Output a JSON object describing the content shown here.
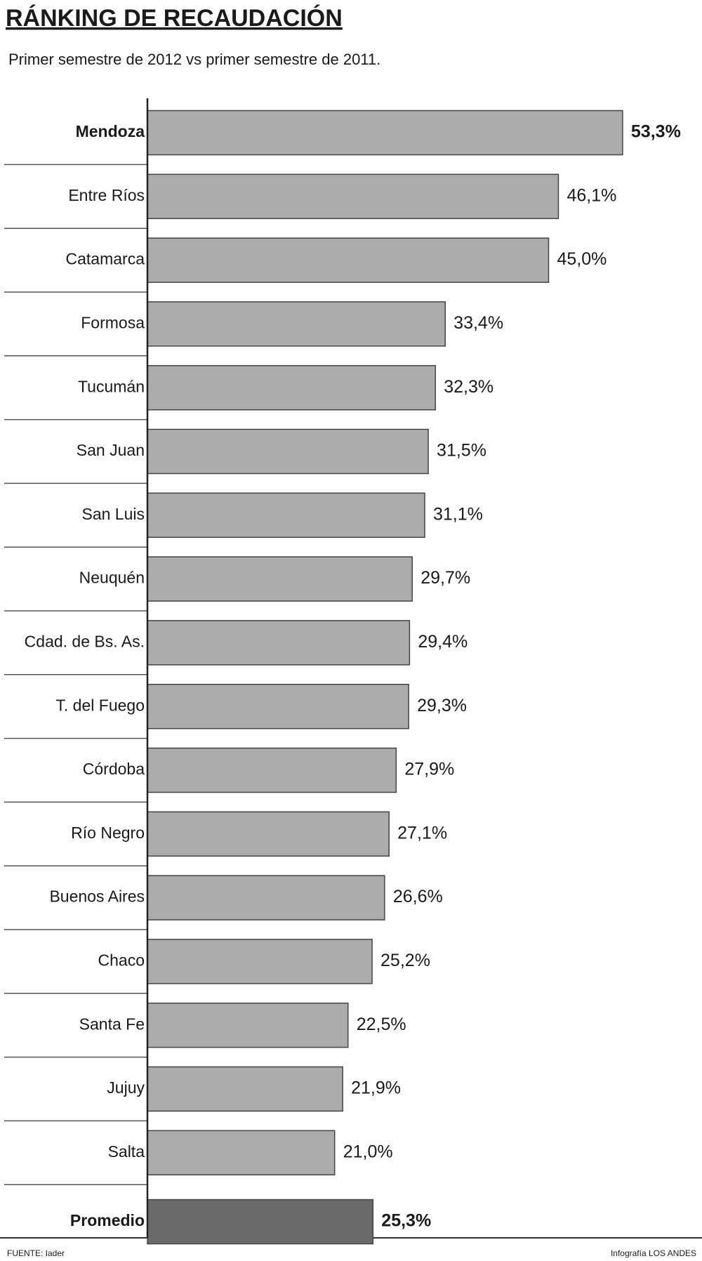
{
  "chart_data": {
    "type": "bar",
    "title": "RÁNKING DE RECAUDACIÓN",
    "subtitle": "Primer semestre de 2012 vs primer semestre de 2011.",
    "categories": [
      "Mendoza",
      "Entre Ríos",
      "Catamarca",
      "Formosa",
      "Tucumán",
      "San Juan",
      "San Luis",
      "Neuquén",
      "Cdad. de Bs. As.",
      "T. del Fuego",
      "Córdoba",
      "Río Negro",
      "Buenos Aires",
      "Chaco",
      "Santa Fe",
      "Jujuy",
      "Salta",
      "Promedio"
    ],
    "values": [
      53.3,
      46.1,
      45.0,
      33.4,
      32.3,
      31.5,
      31.1,
      29.7,
      29.4,
      29.3,
      27.9,
      27.1,
      26.6,
      25.2,
      22.5,
      21.9,
      21.0,
      25.3
    ],
    "value_labels": [
      "53,3%",
      "46,1%",
      "45,0%",
      "33,4%",
      "32,3%",
      "31,5%",
      "31,1%",
      "29,7%",
      "29,4%",
      "29,3%",
      "27,9%",
      "27,1%",
      "26,6%",
      "25,2%",
      "22,5%",
      "21,9%",
      "21,0%",
      "25,3%"
    ],
    "colors": [
      "#acacac",
      "#acacac",
      "#acacac",
      "#acacac",
      "#acacac",
      "#acacac",
      "#acacac",
      "#acacac",
      "#acacac",
      "#acacac",
      "#acacac",
      "#acacac",
      "#acacac",
      "#acacac",
      "#acacac",
      "#acacac",
      "#acacac",
      "#6a6a6a"
    ],
    "source": "FUENTE: Iader",
    "credit": "Infografía LOS ANDES"
  }
}
